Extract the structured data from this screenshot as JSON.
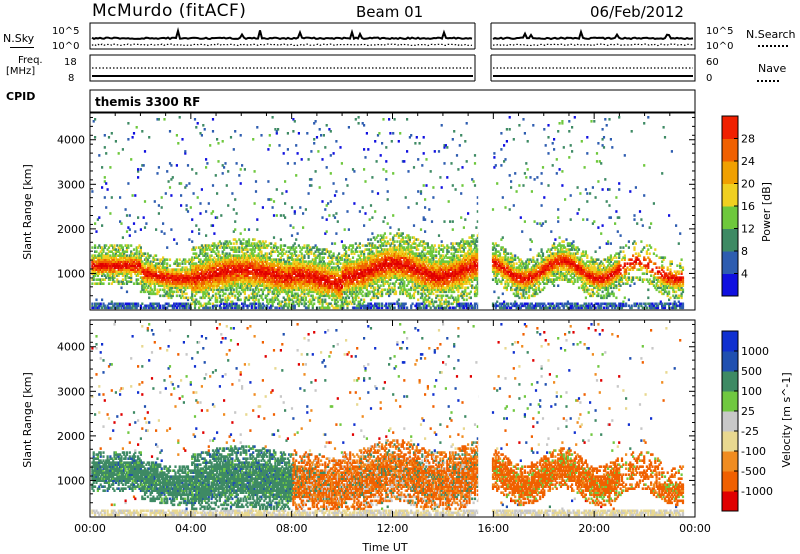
{
  "header": {
    "station": "McMurdo (fitACF)",
    "beam": "Beam 01",
    "date": "06/Feb/2012"
  },
  "sky_panel": {
    "left_label": "N.Sky",
    "right_label": "N.Search",
    "left_ticks": [
      "10^5",
      "10^0"
    ],
    "right_ticks": [
      "10^5",
      "10^0"
    ]
  },
  "freq_panel": {
    "left_label_line1": "Freq.",
    "left_label_line2": "[MHz]",
    "left_ticks": [
      "18",
      "8"
    ],
    "right_label": "Nave",
    "right_ticks": [
      "60",
      "0"
    ]
  },
  "cpid": {
    "label": "CPID",
    "value": "themis 3300 RF"
  },
  "colors": {
    "power": [
      "#1010e0",
      "#2e5db0",
      "#3e8a64",
      "#6ec83c",
      "#f0d020",
      "#f0a000",
      "#f06000",
      "#f02000",
      "#e00000"
    ],
    "velocity": [
      "#e00000",
      "#f06000",
      "#f08c20",
      "#e8d890",
      "#c8c8c8",
      "#70c840",
      "#3e8a64",
      "#2050b0",
      "#1030d0"
    ]
  },
  "chart_data": [
    {
      "type": "heatmap",
      "ylabel": "Slant Range [km]",
      "xlabel": "",
      "x_ticks": [
        "00:00",
        "04:00",
        "08:00",
        "12:00",
        "16:00",
        "20:00",
        "00:00"
      ],
      "y_ticks": [
        "1000",
        "2000",
        "3000",
        "4000"
      ],
      "xlim": [
        0,
        24
      ],
      "ylim": [
        180,
        4600
      ],
      "colorbar": {
        "label": "Power [dB]",
        "ticks": [
          "4",
          "8",
          "12",
          "16",
          "20",
          "24",
          "28"
        ],
        "range": [
          0,
          32
        ]
      },
      "data_gap_hours": [
        15.4,
        15.9
      ]
    },
    {
      "type": "heatmap",
      "ylabel": "Slant Range [km]",
      "xlabel": "Time UT",
      "x_ticks": [
        "00:00",
        "04:00",
        "08:00",
        "12:00",
        "16:00",
        "20:00",
        "00:00"
      ],
      "y_ticks": [
        "1000",
        "2000",
        "3000",
        "4000"
      ],
      "xlim": [
        0,
        24
      ],
      "ylim": [
        180,
        4600
      ],
      "colorbar": {
        "label": "Velocity [m s^-1]",
        "ticks": [
          "1000",
          "500",
          "100",
          "25",
          "-25",
          "-100",
          "-500",
          "-1000"
        ]
      },
      "data_gap_hours": [
        15.4,
        15.9
      ]
    }
  ]
}
